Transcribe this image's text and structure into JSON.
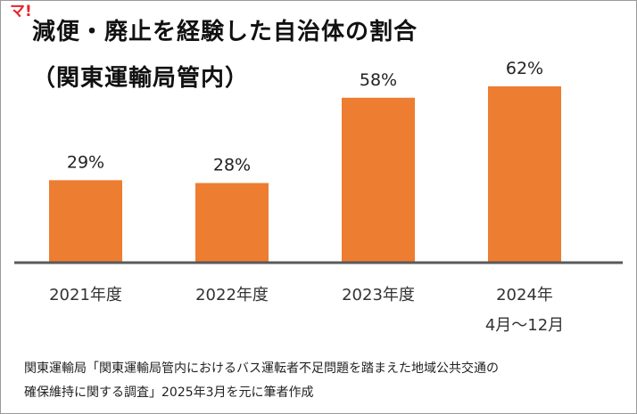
{
  "logo_text": "マ!",
  "chart_data": {
    "type": "bar",
    "title_line1": "減便・廃止を経験した自治体の割合",
    "title_line2": "（関東運輸局管内）",
    "categories": [
      "2021年度",
      "2022年度",
      "2023年度",
      "2024年"
    ],
    "category_sublabels": [
      "",
      "",
      "",
      "4月～12月"
    ],
    "values": [
      29,
      28,
      58,
      62
    ],
    "value_labels": [
      "29%",
      "28%",
      "58%",
      "62%"
    ],
    "ylim": [
      0,
      70
    ],
    "xlabel": "",
    "ylabel": "",
    "bar_color": "#ed7d31"
  },
  "source": {
    "line1": "関東運輸局「関東運輸局管内におけるバス運転者不足問題を踏まえた地域公共交通の",
    "line2": "確保維持に関する調査」2025年3月を元に筆者作成"
  }
}
